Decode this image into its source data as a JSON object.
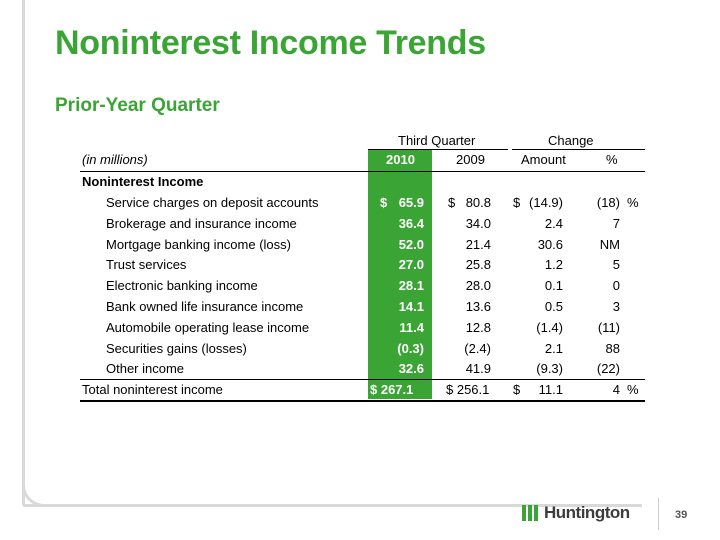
{
  "title": "Noninterest Income Trends",
  "subtitle": "Prior-Year Quarter",
  "table": {
    "group_third_quarter": "Third Quarter",
    "group_change": "Change",
    "units_label": "(in millions)",
    "col_2010": "2010",
    "col_2009": "2009",
    "col_amount": "Amount",
    "col_pct": "%",
    "section_label": "Noninterest Income",
    "rows": [
      {
        "label": "Service charges on deposit accounts",
        "d2010": "65.9",
        "d2009": "80.8",
        "amount": "(14.9)",
        "pct": "(18)"
      },
      {
        "label": "Brokerage and insurance income",
        "d2010": "36.4",
        "d2009": "34.0",
        "amount": "2.4",
        "pct": "7"
      },
      {
        "label": "Mortgage banking income (loss)",
        "d2010": "52.0",
        "d2009": "21.4",
        "amount": "30.6",
        "pct": "NM"
      },
      {
        "label": "Trust services",
        "d2010": "27.0",
        "d2009": "25.8",
        "amount": "1.2",
        "pct": "5"
      },
      {
        "label": "Electronic banking income",
        "d2010": "28.1",
        "d2009": "28.0",
        "amount": "0.1",
        "pct": "0"
      },
      {
        "label": "Bank owned life insurance income",
        "d2010": "14.1",
        "d2009": "13.6",
        "amount": "0.5",
        "pct": "3"
      },
      {
        "label": "Automobile operating lease income",
        "d2010": "11.4",
        "d2009": "12.8",
        "amount": "(1.4)",
        "pct": "(11)"
      },
      {
        "label": "Securities gains (losses)",
        "d2010": "(0.3)",
        "d2009": "(2.4)",
        "amount": "2.1",
        "pct": "88"
      },
      {
        "label": "Other income",
        "d2010": "32.6",
        "d2009": "41.9",
        "amount": "(9.3)",
        "pct": "(22)"
      }
    ],
    "total": {
      "label": "Total noninterest income",
      "d2010": "$ 267.1",
      "d2009": "$ 256.1",
      "amount": "11.1",
      "pct": "4"
    },
    "currency_symbol": "$",
    "percent_symbol": "%"
  },
  "footer": {
    "page_number": "39",
    "logo_text": "Huntington"
  },
  "colors": {
    "brand_green": "#3aa535"
  }
}
